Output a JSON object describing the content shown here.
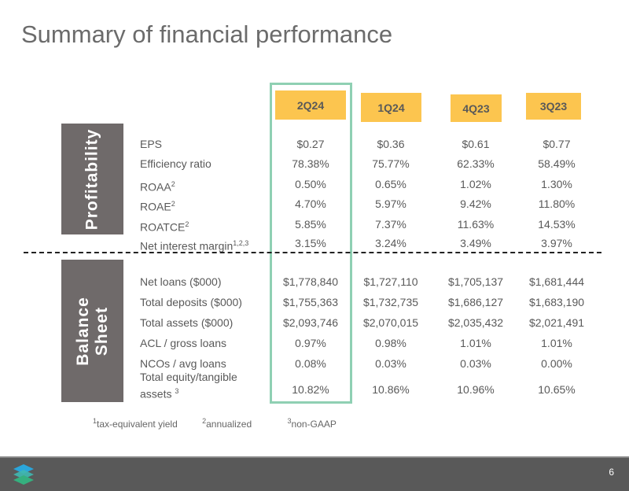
{
  "title": "Summary of financial performance",
  "columns": [
    "2Q24",
    "1Q24",
    "4Q23",
    "3Q23"
  ],
  "sections": {
    "profitability": {
      "label": "Profitability",
      "rows": [
        {
          "label": "EPS",
          "sup": "",
          "values": [
            "$0.27",
            "$0.36",
            "$0.61",
            "$0.77"
          ]
        },
        {
          "label": "Efficiency ratio",
          "sup": "",
          "values": [
            "78.38%",
            "75.77%",
            "62.33%",
            "58.49%"
          ]
        },
        {
          "label": "ROAA",
          "sup": "2",
          "values": [
            "0.50%",
            "0.65%",
            "1.02%",
            "1.30%"
          ]
        },
        {
          "label": "ROAE",
          "sup": "2",
          "values": [
            "4.70%",
            "5.97%",
            "9.42%",
            "11.80%"
          ]
        },
        {
          "label": "ROATCE",
          "sup": "2",
          "values": [
            "5.85%",
            "7.37%",
            "11.63%",
            "14.53%"
          ]
        },
        {
          "label": "Net interest margin",
          "sup": "1,2,3",
          "values": [
            "3.15%",
            "3.24%",
            "3.49%",
            "3.97%"
          ]
        }
      ]
    },
    "balance_sheet": {
      "label_line1": "Balance",
      "label_line2": "Sheet",
      "rows": [
        {
          "label": "Net loans ($000)",
          "values": [
            "$1,778,840",
            "$1,727,110",
            "$1,705,137",
            "$1,681,444"
          ]
        },
        {
          "label": "Total deposits ($000)",
          "values": [
            "$1,755,363",
            "$1,732,735",
            "$1,686,127",
            "$1,683,190"
          ]
        },
        {
          "label": "Total assets ($000)",
          "values": [
            "$2,093,746",
            "$2,070,015",
            "$2,035,432",
            "$2,021,491"
          ]
        },
        {
          "label": "ACL / gross loans",
          "values": [
            "0.97%",
            "0.98%",
            "1.01%",
            "1.01%"
          ]
        },
        {
          "label": "NCOs / avg loans",
          "values": [
            "0.08%",
            "0.03%",
            "0.03%",
            "0.00%"
          ]
        },
        {
          "label_line1": "Total equity/tangible",
          "label_line2": "assets",
          "sup": "3",
          "values": [
            "10.82%",
            "10.86%",
            "10.96%",
            "10.65%"
          ]
        }
      ]
    }
  },
  "footnotes": [
    {
      "sup": "1",
      "text": "tax-equivalent yield"
    },
    {
      "sup": "2",
      "text": "annualized"
    },
    {
      "sup": "3",
      "text": "non-GAAP"
    }
  ],
  "page_number": "6",
  "colors": {
    "highlight": "#8fd0b3",
    "header": "#fcc54f",
    "side": "#6f6a6a",
    "footer": "#595959"
  }
}
